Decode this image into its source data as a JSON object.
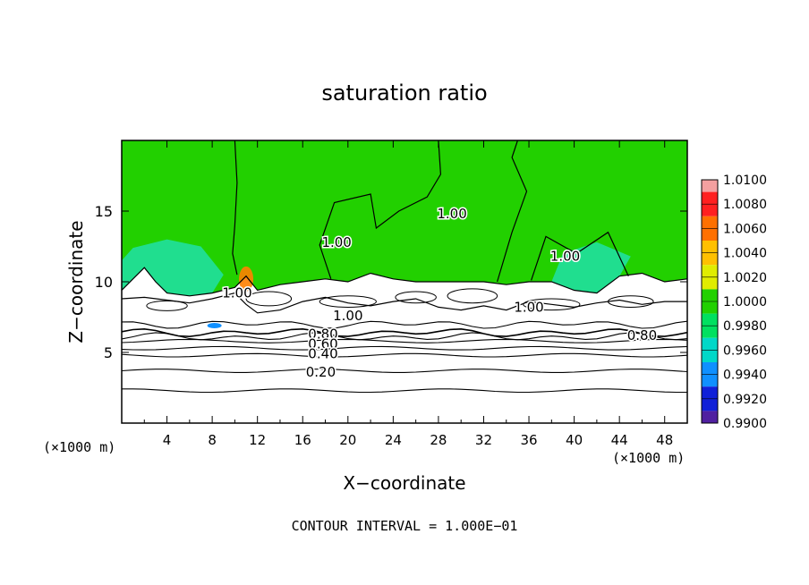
{
  "chart_data": {
    "type": "heatmap",
    "title": "saturation ratio",
    "xlabel": "X−coordinate",
    "ylabel": "Z−coordinate",
    "x_unit": "(×1000 m)",
    "z_unit": "(×1000 m)",
    "xlim": [
      0,
      50
    ],
    "ylim": [
      0,
      20
    ],
    "x_ticks": [
      "4",
      "8",
      "12",
      "16",
      "20",
      "24",
      "28",
      "32",
      "36",
      "40",
      "44",
      "48"
    ],
    "y_ticks": [
      "5",
      "10",
      "15"
    ],
    "footnote": "CONTOUR INTERVAL = 1.000E−01",
    "colorbar": {
      "levels": [
        "1.0100",
        "1.0080",
        "1.0060",
        "1.0040",
        "1.0020",
        "1.0000",
        "0.9980",
        "0.9960",
        "0.9940",
        "0.9920",
        "0.9900"
      ],
      "colors": [
        "#f4a0a0",
        "#ff2020",
        "#ff7000",
        "#ffc000",
        "#e0ec00",
        "#22d000",
        "#00e060",
        "#00d8c8",
        "#1090ff",
        "#1020d8",
        "#5020a0"
      ]
    },
    "contour_labels": [
      {
        "text": "1.00",
        "x": 10.2,
        "z": 9.2
      },
      {
        "text": "1.00",
        "x": 19.0,
        "z": 12.8
      },
      {
        "text": "1.00",
        "x": 29.2,
        "z": 14.8
      },
      {
        "text": "1.00",
        "x": 39.2,
        "z": 11.8
      },
      {
        "text": "1.00",
        "x": 20.0,
        "z": 7.6
      },
      {
        "text": "1.00",
        "x": 36.0,
        "z": 8.2
      },
      {
        "text": "0.80",
        "x": 17.8,
        "z": 6.3
      },
      {
        "text": "0.60",
        "x": 17.8,
        "z": 5.6
      },
      {
        "text": "0.40",
        "x": 17.8,
        "z": 4.9
      },
      {
        "text": "0.20",
        "x": 17.6,
        "z": 3.6
      },
      {
        "text": "0.80",
        "x": 46.0,
        "z": 6.2
      }
    ],
    "series": [
      {
        "value": 0.2,
        "z": 3.7
      },
      {
        "value": 0.3,
        "z": 2.3
      },
      {
        "value": 0.4,
        "z": 4.8
      },
      {
        "value": 0.5,
        "z": 5.3
      },
      {
        "value": 0.6,
        "z": 5.8
      },
      {
        "value": 0.7,
        "z": 6.1
      },
      {
        "value": 0.8,
        "z": 6.4
      },
      {
        "value": 0.9,
        "z": 7.0
      }
    ],
    "cloud_base": [
      [
        0,
        8.8
      ],
      [
        2,
        8.9
      ],
      [
        4,
        8.7
      ],
      [
        6,
        8.5
      ],
      [
        8,
        8.8
      ],
      [
        10,
        9.2
      ],
      [
        11,
        8.4
      ],
      [
        12,
        7.8
      ],
      [
        14,
        8.0
      ],
      [
        16,
        8.6
      ],
      [
        18,
        8.9
      ],
      [
        20,
        8.5
      ],
      [
        22,
        8.3
      ],
      [
        24,
        8.6
      ],
      [
        26,
        8.8
      ],
      [
        28,
        8.2
      ],
      [
        30,
        8.0
      ],
      [
        32,
        8.3
      ],
      [
        34,
        8.0
      ],
      [
        36,
        8.6
      ],
      [
        38,
        8.4
      ],
      [
        40,
        8.2
      ],
      [
        42,
        8.5
      ],
      [
        44,
        8.7
      ],
      [
        46,
        8.4
      ],
      [
        48,
        8.6
      ],
      [
        50,
        8.6
      ]
    ],
    "cloud_top": [
      [
        0,
        9.4
      ],
      [
        1,
        10.2
      ],
      [
        2,
        11.0
      ],
      [
        3,
        10.0
      ],
      [
        4,
        9.2
      ],
      [
        6,
        9.0
      ],
      [
        8,
        9.2
      ],
      [
        10,
        9.6
      ],
      [
        11,
        10.4
      ],
      [
        12,
        9.4
      ],
      [
        14,
        9.8
      ],
      [
        16,
        10.0
      ],
      [
        18,
        10.2
      ],
      [
        20,
        10.0
      ],
      [
        22,
        10.6
      ],
      [
        24,
        10.2
      ],
      [
        26,
        10.0
      ],
      [
        28,
        10.0
      ],
      [
        30,
        10.0
      ],
      [
        32,
        10.0
      ],
      [
        34,
        9.8
      ],
      [
        36,
        10.0
      ],
      [
        38,
        10.0
      ],
      [
        40,
        9.4
      ],
      [
        42,
        9.2
      ],
      [
        44,
        10.4
      ],
      [
        46,
        10.6
      ],
      [
        48,
        10.0
      ],
      [
        50,
        10.2
      ]
    ]
  }
}
